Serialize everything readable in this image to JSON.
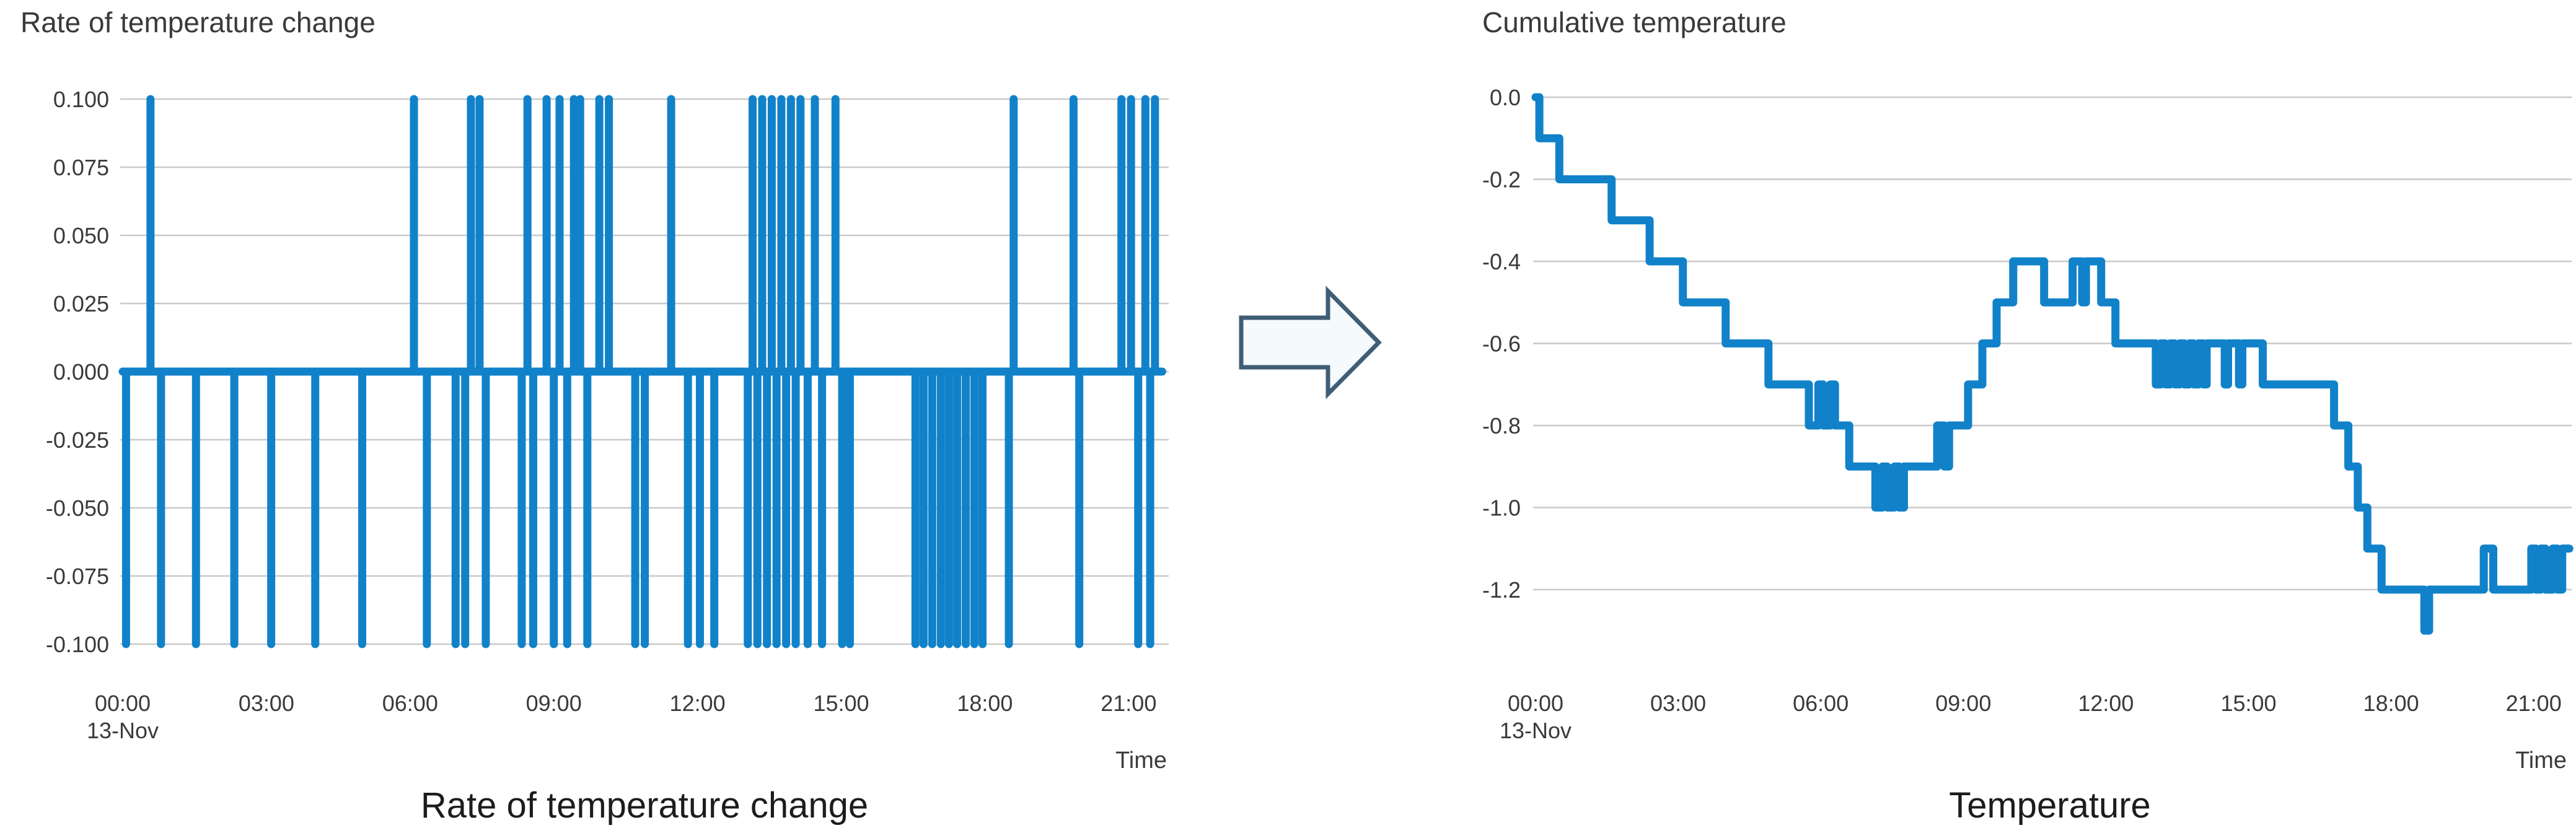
{
  "figure": {
    "background": "#ffffff",
    "description_labels": {
      "left_caption": "Rate of temperature change",
      "right_caption": "Temperature"
    }
  },
  "arrow": {
    "name": "right-block-arrow",
    "stroke": "#3f5e76",
    "fill": "#f5fafd"
  },
  "chart_data": [
    {
      "type": "line",
      "title": "Rate of temperature change",
      "caption": "Rate of temperature change",
      "xlabel": "Time",
      "x_start_date": "13-Nov",
      "x_tick_labels": [
        "00:00",
        "03:00",
        "06:00",
        "09:00",
        "12:00",
        "15:00",
        "18:00",
        "21:00"
      ],
      "x_tick_hours": [
        0,
        3,
        6,
        9,
        12,
        15,
        18,
        21
      ],
      "xlim_hours": [
        0,
        21.8
      ],
      "y_tick_labels": [
        "0.100",
        "0.075",
        "0.050",
        "0.025",
        "0.000",
        "-0.025",
        "-0.050",
        "-0.075",
        "-0.100"
      ],
      "y_ticks": [
        0.1,
        0.075,
        0.05,
        0.025,
        0.0,
        -0.025,
        -0.05,
        -0.075,
        -0.1
      ],
      "ylim": [
        -0.1,
        0.1
      ],
      "grid": true,
      "legend": "none",
      "baseline_value": 0.0,
      "line_color": "#1182c9",
      "grid_color": "#c9c9c9",
      "text_color": "#3a3a3a",
      "caption_color": "#1c1c1c",
      "spikes": [
        {
          "t": 0.07,
          "v": -0.1
        },
        {
          "t": 0.58,
          "v": 0.1
        },
        {
          "t": 0.8,
          "v": -0.1
        },
        {
          "t": 1.53,
          "v": -0.1
        },
        {
          "t": 2.33,
          "v": -0.1
        },
        {
          "t": 3.1,
          "v": -0.1
        },
        {
          "t": 4.02,
          "v": -0.1
        },
        {
          "t": 5.0,
          "v": -0.1
        },
        {
          "t": 6.08,
          "v": 0.1
        },
        {
          "t": 6.35,
          "v": -0.1
        },
        {
          "t": 6.95,
          "v": -0.1
        },
        {
          "t": 7.15,
          "v": -0.1
        },
        {
          "t": 7.27,
          "v": 0.1
        },
        {
          "t": 7.45,
          "v": 0.1
        },
        {
          "t": 7.58,
          "v": -0.1
        },
        {
          "t": 8.33,
          "v": -0.1
        },
        {
          "t": 8.45,
          "v": 0.1
        },
        {
          "t": 8.57,
          "v": -0.1
        },
        {
          "t": 8.85,
          "v": 0.1
        },
        {
          "t": 9.0,
          "v": -0.1
        },
        {
          "t": 9.12,
          "v": 0.1
        },
        {
          "t": 9.28,
          "v": -0.1
        },
        {
          "t": 9.42,
          "v": 0.1
        },
        {
          "t": 9.55,
          "v": 0.1
        },
        {
          "t": 9.7,
          "v": -0.1
        },
        {
          "t": 9.95,
          "v": 0.1
        },
        {
          "t": 10.15,
          "v": 0.1
        },
        {
          "t": 10.7,
          "v": -0.1
        },
        {
          "t": 10.9,
          "v": -0.1
        },
        {
          "t": 11.45,
          "v": 0.1
        },
        {
          "t": 11.8,
          "v": -0.1
        },
        {
          "t": 12.05,
          "v": -0.1
        },
        {
          "t": 12.35,
          "v": -0.1
        },
        {
          "t": 13.05,
          "v": -0.1
        },
        {
          "t": 13.15,
          "v": 0.1
        },
        {
          "t": 13.25,
          "v": -0.1
        },
        {
          "t": 13.35,
          "v": 0.1
        },
        {
          "t": 13.45,
          "v": -0.1
        },
        {
          "t": 13.55,
          "v": 0.1
        },
        {
          "t": 13.65,
          "v": -0.1
        },
        {
          "t": 13.75,
          "v": 0.1
        },
        {
          "t": 13.85,
          "v": -0.1
        },
        {
          "t": 13.95,
          "v": 0.1
        },
        {
          "t": 14.05,
          "v": -0.1
        },
        {
          "t": 14.15,
          "v": 0.1
        },
        {
          "t": 14.3,
          "v": -0.1
        },
        {
          "t": 14.45,
          "v": 0.1
        },
        {
          "t": 14.6,
          "v": -0.1
        },
        {
          "t": 14.88,
          "v": 0.1
        },
        {
          "t": 15.02,
          "v": -0.1
        },
        {
          "t": 15.18,
          "v": -0.1
        },
        {
          "t": 16.55,
          "v": -0.1
        },
        {
          "t": 16.72,
          "v": -0.1
        },
        {
          "t": 16.9,
          "v": -0.1
        },
        {
          "t": 17.08,
          "v": -0.1
        },
        {
          "t": 17.25,
          "v": -0.1
        },
        {
          "t": 17.42,
          "v": -0.1
        },
        {
          "t": 17.6,
          "v": -0.1
        },
        {
          "t": 17.78,
          "v": -0.1
        },
        {
          "t": 17.95,
          "v": -0.1
        },
        {
          "t": 18.5,
          "v": -0.1
        },
        {
          "t": 18.6,
          "v": 0.1
        },
        {
          "t": 19.85,
          "v": 0.1
        },
        {
          "t": 19.97,
          "v": -0.1
        },
        {
          "t": 20.85,
          "v": 0.1
        },
        {
          "t": 21.05,
          "v": 0.1
        },
        {
          "t": 21.2,
          "v": -0.1
        },
        {
          "t": 21.35,
          "v": 0.1
        },
        {
          "t": 21.45,
          "v": -0.1
        },
        {
          "t": 21.55,
          "v": 0.1
        }
      ]
    },
    {
      "type": "line",
      "title": "Cumulative temperature",
      "caption": "Temperature",
      "xlabel": "Time",
      "x_start_date": "13-Nov",
      "x_tick_labels": [
        "00:00",
        "03:00",
        "06:00",
        "09:00",
        "12:00",
        "15:00",
        "18:00",
        "21:00"
      ],
      "x_tick_hours": [
        0,
        3,
        6,
        9,
        12,
        15,
        18,
        21
      ],
      "xlim_hours": [
        0,
        21.8
      ],
      "y_tick_labels": [
        "0.0",
        "-0.2",
        "-0.4",
        "-0.6",
        "-0.8",
        "-1.0",
        "-1.2"
      ],
      "y_ticks": [
        0.0,
        -0.2,
        -0.4,
        -0.6,
        -0.8,
        -1.0,
        -1.2
      ],
      "ylim": [
        -1.35,
        0.05
      ],
      "grid": true,
      "legend": "none",
      "line_color": "#1182c9",
      "grid_color": "#c9c9c9",
      "text_color": "#3a3a3a",
      "caption_color": "#1c1c1c",
      "steps": [
        [
          0.0,
          0.0
        ],
        [
          0.08,
          -0.1
        ],
        [
          0.5,
          -0.2
        ],
        [
          1.6,
          -0.3
        ],
        [
          2.4,
          -0.4
        ],
        [
          3.1,
          -0.5
        ],
        [
          4.0,
          -0.6
        ],
        [
          4.9,
          -0.7
        ],
        [
          5.75,
          -0.8
        ],
        [
          5.95,
          -0.7
        ],
        [
          6.05,
          -0.8
        ],
        [
          6.2,
          -0.7
        ],
        [
          6.3,
          -0.8
        ],
        [
          6.6,
          -0.9
        ],
        [
          7.15,
          -1.0
        ],
        [
          7.3,
          -0.9
        ],
        [
          7.4,
          -1.0
        ],
        [
          7.55,
          -0.9
        ],
        [
          7.65,
          -1.0
        ],
        [
          7.75,
          -0.9
        ],
        [
          8.45,
          -0.8
        ],
        [
          8.6,
          -0.9
        ],
        [
          8.7,
          -0.8
        ],
        [
          9.1,
          -0.7
        ],
        [
          9.4,
          -0.6
        ],
        [
          9.7,
          -0.5
        ],
        [
          10.05,
          -0.4
        ],
        [
          10.7,
          -0.5
        ],
        [
          11.3,
          -0.4
        ],
        [
          11.5,
          -0.5
        ],
        [
          11.58,
          -0.4
        ],
        [
          11.9,
          -0.5
        ],
        [
          12.2,
          -0.6
        ],
        [
          13.05,
          -0.7
        ],
        [
          13.15,
          -0.6
        ],
        [
          13.25,
          -0.7
        ],
        [
          13.35,
          -0.6
        ],
        [
          13.45,
          -0.7
        ],
        [
          13.55,
          -0.6
        ],
        [
          13.65,
          -0.7
        ],
        [
          13.75,
          -0.6
        ],
        [
          13.85,
          -0.7
        ],
        [
          13.95,
          -0.6
        ],
        [
          14.05,
          -0.7
        ],
        [
          14.12,
          -0.6
        ],
        [
          14.5,
          -0.7
        ],
        [
          14.57,
          -0.6
        ],
        [
          14.8,
          -0.7
        ],
        [
          14.87,
          -0.6
        ],
        [
          15.3,
          -0.7
        ],
        [
          16.8,
          -0.8
        ],
        [
          17.1,
          -0.9
        ],
        [
          17.3,
          -1.0
        ],
        [
          17.5,
          -1.1
        ],
        [
          17.8,
          -1.2
        ],
        [
          18.7,
          -1.3
        ],
        [
          18.8,
          -1.2
        ],
        [
          19.95,
          -1.1
        ],
        [
          20.15,
          -1.2
        ],
        [
          20.95,
          -1.1
        ],
        [
          21.05,
          -1.2
        ],
        [
          21.15,
          -1.1
        ],
        [
          21.25,
          -1.2
        ],
        [
          21.4,
          -1.1
        ],
        [
          21.5,
          -1.2
        ],
        [
          21.6,
          -1.1
        ]
      ]
    }
  ]
}
